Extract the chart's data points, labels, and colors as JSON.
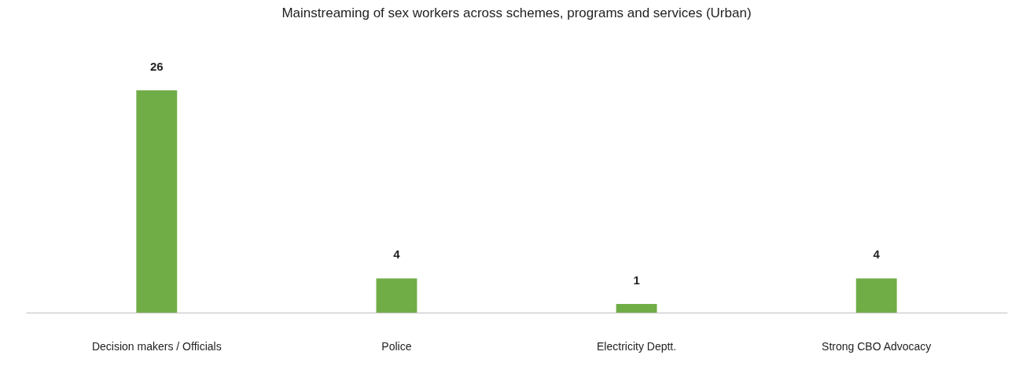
{
  "chart_data": {
    "type": "bar",
    "title": "Mainstreaming of sex workers across schemes, programs and  services (Urban)",
    "categories": [
      "Decision makers / Officials",
      "Police",
      "Electricity Deptt.",
      "Strong CBO Advocacy"
    ],
    "values": [
      26,
      4,
      1,
      4
    ],
    "color": "#70ad47",
    "data_labels": true,
    "grid": false
  }
}
